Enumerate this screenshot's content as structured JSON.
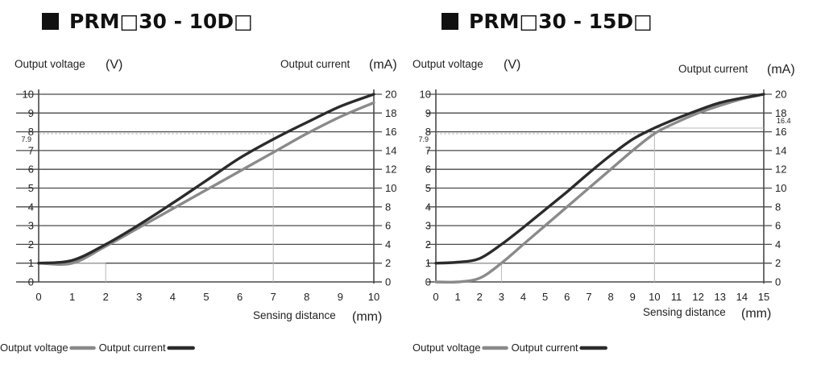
{
  "colors": {
    "voltage": "#8a8a8a",
    "current": "#2b2b2b",
    "grid": "#4a4a4a",
    "guide": "#b9b9b9"
  },
  "chart_data": [
    {
      "type": "line",
      "title": "PRM□30 - 10D□",
      "ylabel_left": "Output voltage",
      "ylabel_left_unit": "(V)",
      "ylabel_right": "Output current",
      "ylabel_right_unit": "(mA)",
      "xlabel": "Sensing distance",
      "xlabel_unit": "(mm)",
      "xlim": [
        0,
        10
      ],
      "ylim_left": [
        0,
        10
      ],
      "ylim_right": [
        0,
        20
      ],
      "x_ticks": [
        "0",
        "1",
        "2",
        "3",
        "4",
        "5",
        "6",
        "7",
        "8",
        "9",
        "10"
      ],
      "y_left_ticks": [
        "0",
        "1",
        "2",
        "3",
        "4",
        "5",
        "6",
        "7",
        "8",
        "9",
        "10"
      ],
      "y_right_ticks": [
        "0",
        "2",
        "4",
        "6",
        "8",
        "10",
        "12",
        "14",
        "16",
        "18",
        "20"
      ],
      "grid": "horizontal",
      "marker_left_label": "7.9",
      "marker_right_label": "",
      "guide_lines": {
        "x_at_2": 2,
        "x_at_7": 7,
        "y_at_1": 1,
        "y_at_7_9": 7.9
      },
      "series": [
        {
          "name": "Output voltage",
          "axis": "left",
          "x": [
            0,
            1,
            2,
            3,
            4,
            5,
            6,
            7,
            8,
            9,
            10
          ],
          "y": [
            1,
            1,
            1.9,
            2.9,
            3.9,
            4.9,
            5.9,
            6.9,
            7.9,
            8.8,
            9.55
          ]
        },
        {
          "name": "Output current",
          "axis": "right",
          "x": [
            0,
            1,
            2,
            3,
            4,
            5,
            6,
            7,
            8,
            9,
            10
          ],
          "y": [
            2,
            2.3,
            4.0,
            6.1,
            8.4,
            10.8,
            13.2,
            15.2,
            17.0,
            18.7,
            20
          ]
        }
      ]
    },
    {
      "type": "line",
      "title": "PRM□30 - 15D□",
      "ylabel_left": "Output voltage",
      "ylabel_left_unit": "(V)",
      "ylabel_right": "Output current",
      "ylabel_right_unit": "(mA)",
      "xlabel": "Sensing distance",
      "xlabel_unit": "(mm)",
      "xlim": [
        0,
        15
      ],
      "ylim_left": [
        0,
        10
      ],
      "ylim_right": [
        0,
        20
      ],
      "x_ticks": [
        "0",
        "1",
        "2",
        "3",
        "4",
        "5",
        "6",
        "7",
        "8",
        "9",
        "10",
        "11",
        "12",
        "13",
        "14",
        "15"
      ],
      "y_left_ticks": [
        "0",
        "1",
        "2",
        "3",
        "4",
        "5",
        "6",
        "7",
        "8",
        "9",
        "10"
      ],
      "y_right_ticks": [
        "0",
        "2",
        "4",
        "6",
        "8",
        "10",
        "12",
        "14",
        "16",
        "18",
        "20"
      ],
      "grid": "horizontal",
      "marker_left_label": "7.9",
      "marker_right_label": "16.4",
      "guide_lines": {
        "x_at_3": 3,
        "x_at_10": 10,
        "y_at_1": 1,
        "y_at_7_9": 7.9
      },
      "series": [
        {
          "name": "Output voltage",
          "axis": "left",
          "x": [
            0,
            1,
            2,
            3,
            4,
            5,
            6,
            7,
            8,
            9,
            10,
            11,
            12,
            13,
            14,
            15
          ],
          "y": [
            0,
            0,
            0.2,
            1.0,
            2.0,
            3.0,
            4.0,
            5.0,
            6.0,
            7.0,
            7.9,
            8.5,
            9.0,
            9.4,
            9.75,
            10
          ]
        },
        {
          "name": "Output current",
          "axis": "right",
          "x": [
            0,
            1,
            2,
            3,
            4,
            5,
            6,
            7,
            8,
            9,
            10,
            11,
            12,
            13,
            14,
            15
          ],
          "y": [
            2,
            2.1,
            2.5,
            4.0,
            5.8,
            7.7,
            9.6,
            11.6,
            13.5,
            15.2,
            16.4,
            17.4,
            18.3,
            19.1,
            19.6,
            20
          ]
        }
      ]
    }
  ],
  "legend": [
    {
      "voltage_label": "Output voltage",
      "current_label": "Output current"
    },
    {
      "voltage_label": "Output voltage",
      "current_label": "Output current"
    }
  ]
}
